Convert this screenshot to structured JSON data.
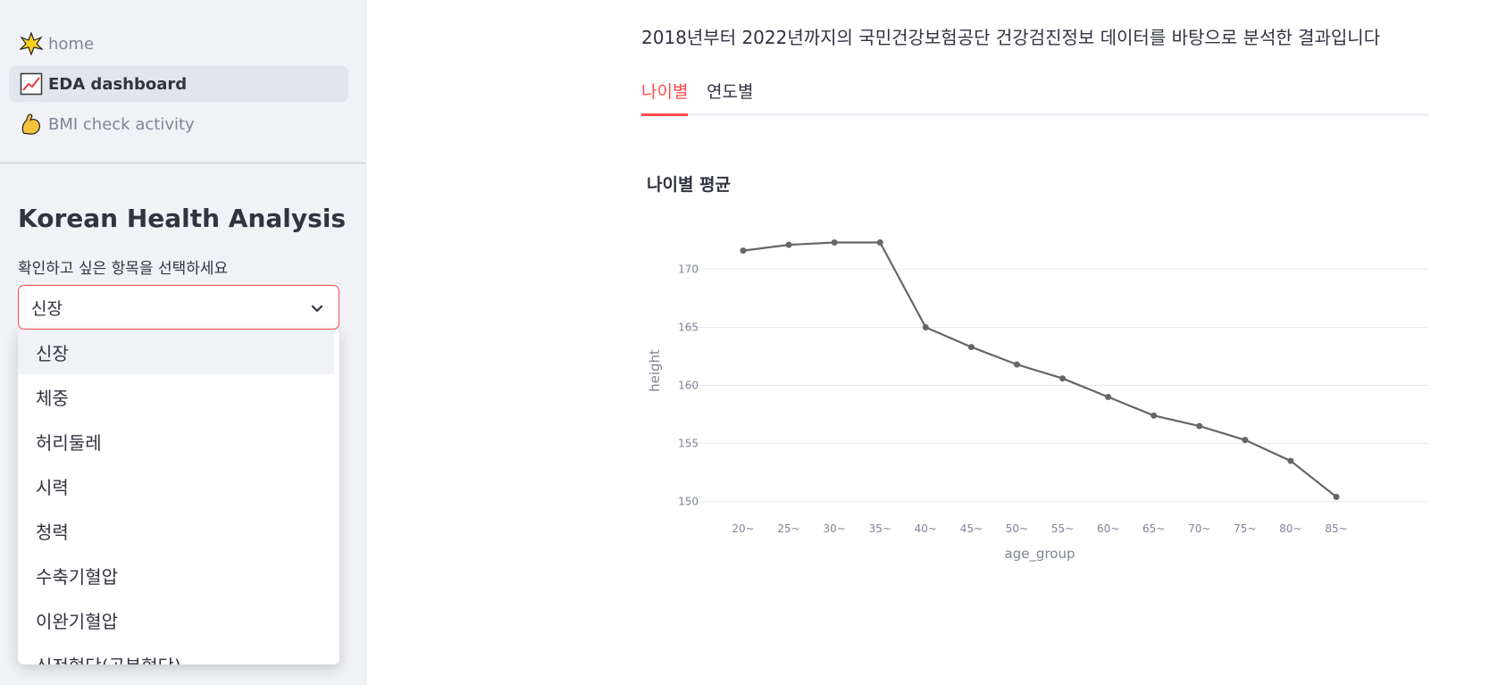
{
  "sidebar": {
    "nav": [
      {
        "label": "home",
        "icon": "star-icon"
      },
      {
        "label": "EDA dashboard",
        "icon": "chart-increasing-icon"
      },
      {
        "label": "BMI check activity",
        "icon": "flexed-biceps-icon"
      }
    ],
    "title": "Korean Health Analysis",
    "select_label": "확인하고 싶은 항목을 선택하세요",
    "select_value": "신장",
    "options": [
      "신장",
      "체중",
      "허리둘레",
      "시력",
      "청력",
      "수축기혈압",
      "이완기혈압",
      "식전혈당(공복혈당)"
    ]
  },
  "main": {
    "intro": "2018년부터 2022년까지의 국민건강보험공단 건강검진정보 데이터를 바탕으로 분석한 결과입니다",
    "tabs": [
      "나이별",
      "연도별"
    ],
    "active_tab": "나이별",
    "chart_title": "나이별 평균"
  },
  "colors": {
    "accent": "#ff4b4b",
    "line": "#666666",
    "grid": "#e6e9ef",
    "axis_text": "#808495"
  },
  "chart_data": {
    "type": "line",
    "title": "나이별 평균",
    "xlabel": "age_group",
    "ylabel": "height",
    "categories": [
      "20~",
      "25~",
      "30~",
      "35~",
      "40~",
      "45~",
      "50~",
      "55~",
      "60~",
      "65~",
      "70~",
      "75~",
      "80~",
      "85~"
    ],
    "values": [
      171.6,
      172.1,
      172.3,
      172.3,
      165.0,
      163.3,
      161.8,
      160.6,
      159.0,
      157.4,
      156.5,
      155.3,
      153.5,
      150.4
    ],
    "yticks": [
      150,
      155,
      160,
      165,
      170
    ],
    "ylim": [
      149.2,
      172.8
    ],
    "grid": true
  }
}
